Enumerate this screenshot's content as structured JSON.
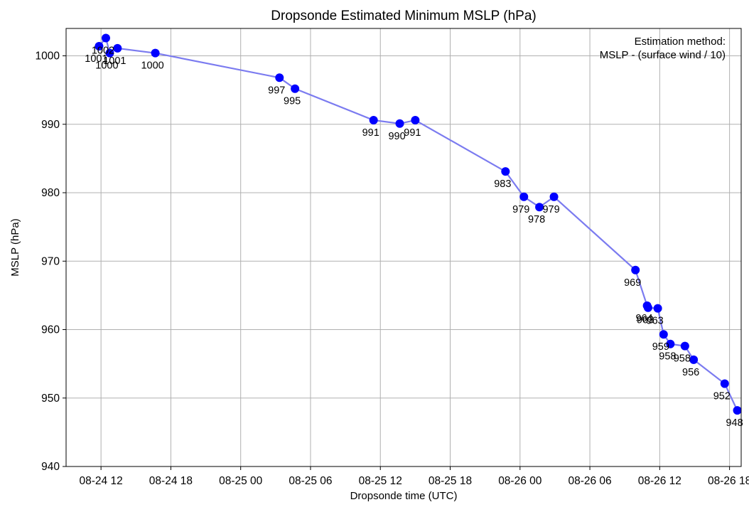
{
  "chart_data": {
    "type": "line",
    "title": "Dropsonde Estimated Minimum MSLP (hPa)",
    "xlabel": "Dropsonde time (UTC)",
    "ylabel": "MSLP (hPa)",
    "xlim": [
      "2025-08-24 09:00",
      "2025-08-26 19:00"
    ],
    "ylim": [
      940,
      1004
    ],
    "x_ticks": [
      "08-24 12",
      "08-24 18",
      "08-25 00",
      "08-25 06",
      "08-25 12",
      "08-25 18",
      "08-26 00",
      "08-26 06",
      "08-26 12",
      "08-26 18"
    ],
    "y_ticks": [
      "940",
      "950",
      "960",
      "970",
      "980",
      "990",
      "1000"
    ],
    "grid": true,
    "line_color": "#7b7bf0",
    "marker_color": "#0000ff",
    "annotation": [
      "Estimation method:",
      "MSLP - (surface wind / 10)"
    ],
    "points": [
      {
        "x": "2025-08-24 11:50",
        "y": 1001.4,
        "label": "1001"
      },
      {
        "x": "2025-08-24 12:25",
        "y": 1002.6,
        "label": "1002"
      },
      {
        "x": "2025-08-24 12:45",
        "y": 1000.4,
        "label": "1000"
      },
      {
        "x": "2025-08-24 13:25",
        "y": 1001.1,
        "label": "1001"
      },
      {
        "x": "2025-08-24 16:40",
        "y": 1000.4,
        "label": "1000"
      },
      {
        "x": "2025-08-25 03:20",
        "y": 996.8,
        "label": "997"
      },
      {
        "x": "2025-08-25 04:40",
        "y": 995.2,
        "label": "995"
      },
      {
        "x": "2025-08-25 11:25",
        "y": 990.6,
        "label": "991"
      },
      {
        "x": "2025-08-25 13:40",
        "y": 990.1,
        "label": "990"
      },
      {
        "x": "2025-08-25 15:00",
        "y": 990.6,
        "label": "991"
      },
      {
        "x": "2025-08-25 22:45",
        "y": 983.1,
        "label": "983"
      },
      {
        "x": "2025-08-26 00:20",
        "y": 979.4,
        "label": "979"
      },
      {
        "x": "2025-08-26 01:40",
        "y": 977.9,
        "label": "978"
      },
      {
        "x": "2025-08-26 02:55",
        "y": 979.4,
        "label": "979"
      },
      {
        "x": "2025-08-26 09:55",
        "y": 968.7,
        "label": "969"
      },
      {
        "x": "2025-08-26 10:55",
        "y": 963.5,
        "label": "964"
      },
      {
        "x": "2025-08-26 11:00",
        "y": 963.2,
        "label": "963"
      },
      {
        "x": "2025-08-26 11:50",
        "y": 963.1,
        "label": "963"
      },
      {
        "x": "2025-08-26 12:20",
        "y": 959.3,
        "label": "959"
      },
      {
        "x": "2025-08-26 12:55",
        "y": 957.9,
        "label": "958"
      },
      {
        "x": "2025-08-26 14:10",
        "y": 957.6,
        "label": "958"
      },
      {
        "x": "2025-08-26 14:55",
        "y": 955.6,
        "label": "956"
      },
      {
        "x": "2025-08-26 17:35",
        "y": 952.1,
        "label": "952"
      },
      {
        "x": "2025-08-26 18:40",
        "y": 948.2,
        "label": "948"
      }
    ]
  }
}
